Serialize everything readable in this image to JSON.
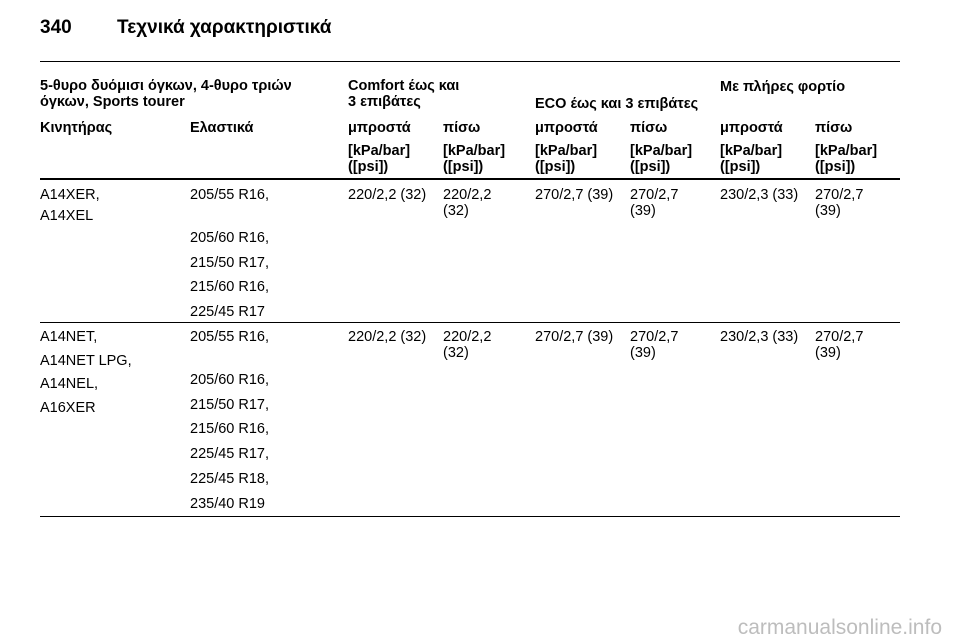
{
  "header": {
    "page_number": "340",
    "title": "Τεχνικά χαρακτηριστικά"
  },
  "table": {
    "group_headers": {
      "model": [
        "5-θυρο δυόμισι όγκων, 4-θυρο τριών",
        "όγκων, Sports tourer"
      ],
      "comfort": [
        "Comfort έως και",
        "3 επιβάτες"
      ],
      "eco": [
        "ECO έως και 3 επιβάτες"
      ],
      "full_load": [
        "Με πλήρες φορτίο"
      ]
    },
    "column_headers": [
      "Κινητήρας",
      "Ελαστικά",
      "μπροστά",
      "πίσω",
      "μπροστά",
      "πίσω",
      "μπροστά",
      "πίσω"
    ],
    "units": [
      [
        "[kPa/bar]",
        "([psi])"
      ],
      [
        "[kPa/bar]",
        "([psi])"
      ],
      [
        "[kPa/bar]",
        "([psi])"
      ],
      [
        "[kPa/bar]",
        "([psi])"
      ],
      [
        "[kPa/bar]",
        "([psi])"
      ],
      [
        "[kPa/bar]",
        "([psi])"
      ]
    ],
    "rows": [
      {
        "engines": [
          "A14XER,",
          "A14XEL"
        ],
        "tyres": [
          "205/55 R16,",
          "205/60 R16,",
          "215/50 R17,",
          "215/60 R16,",
          "225/45 R17"
        ],
        "pressures": [
          [
            "220/2,2 (32)"
          ],
          [
            "220/2,2",
            "(32)"
          ],
          [
            "270/2,7 (39)"
          ],
          [
            "270/2,7",
            "(39)"
          ],
          [
            "230/2,3 (33)"
          ],
          [
            "270/2,7",
            "(39)"
          ]
        ]
      },
      {
        "engines": [
          "A14NET,",
          "A14NET LPG,",
          "A14NEL,",
          "A16XER"
        ],
        "tyres": [
          "205/55 R16,",
          "205/60 R16,",
          "215/50 R17,",
          "215/60 R16,",
          "225/45 R17,",
          "225/45 R18,",
          "235/40 R19"
        ],
        "pressures": [
          [
            "220/2,2 (32)"
          ],
          [
            "220/2,2",
            "(32)"
          ],
          [
            "270/2,7 (39)"
          ],
          [
            "270/2,7",
            "(39)"
          ],
          [
            "230/2,3 (33)"
          ],
          [
            "270/2,7",
            "(39)"
          ]
        ]
      }
    ]
  },
  "watermark": "carmanualsonline.info"
}
